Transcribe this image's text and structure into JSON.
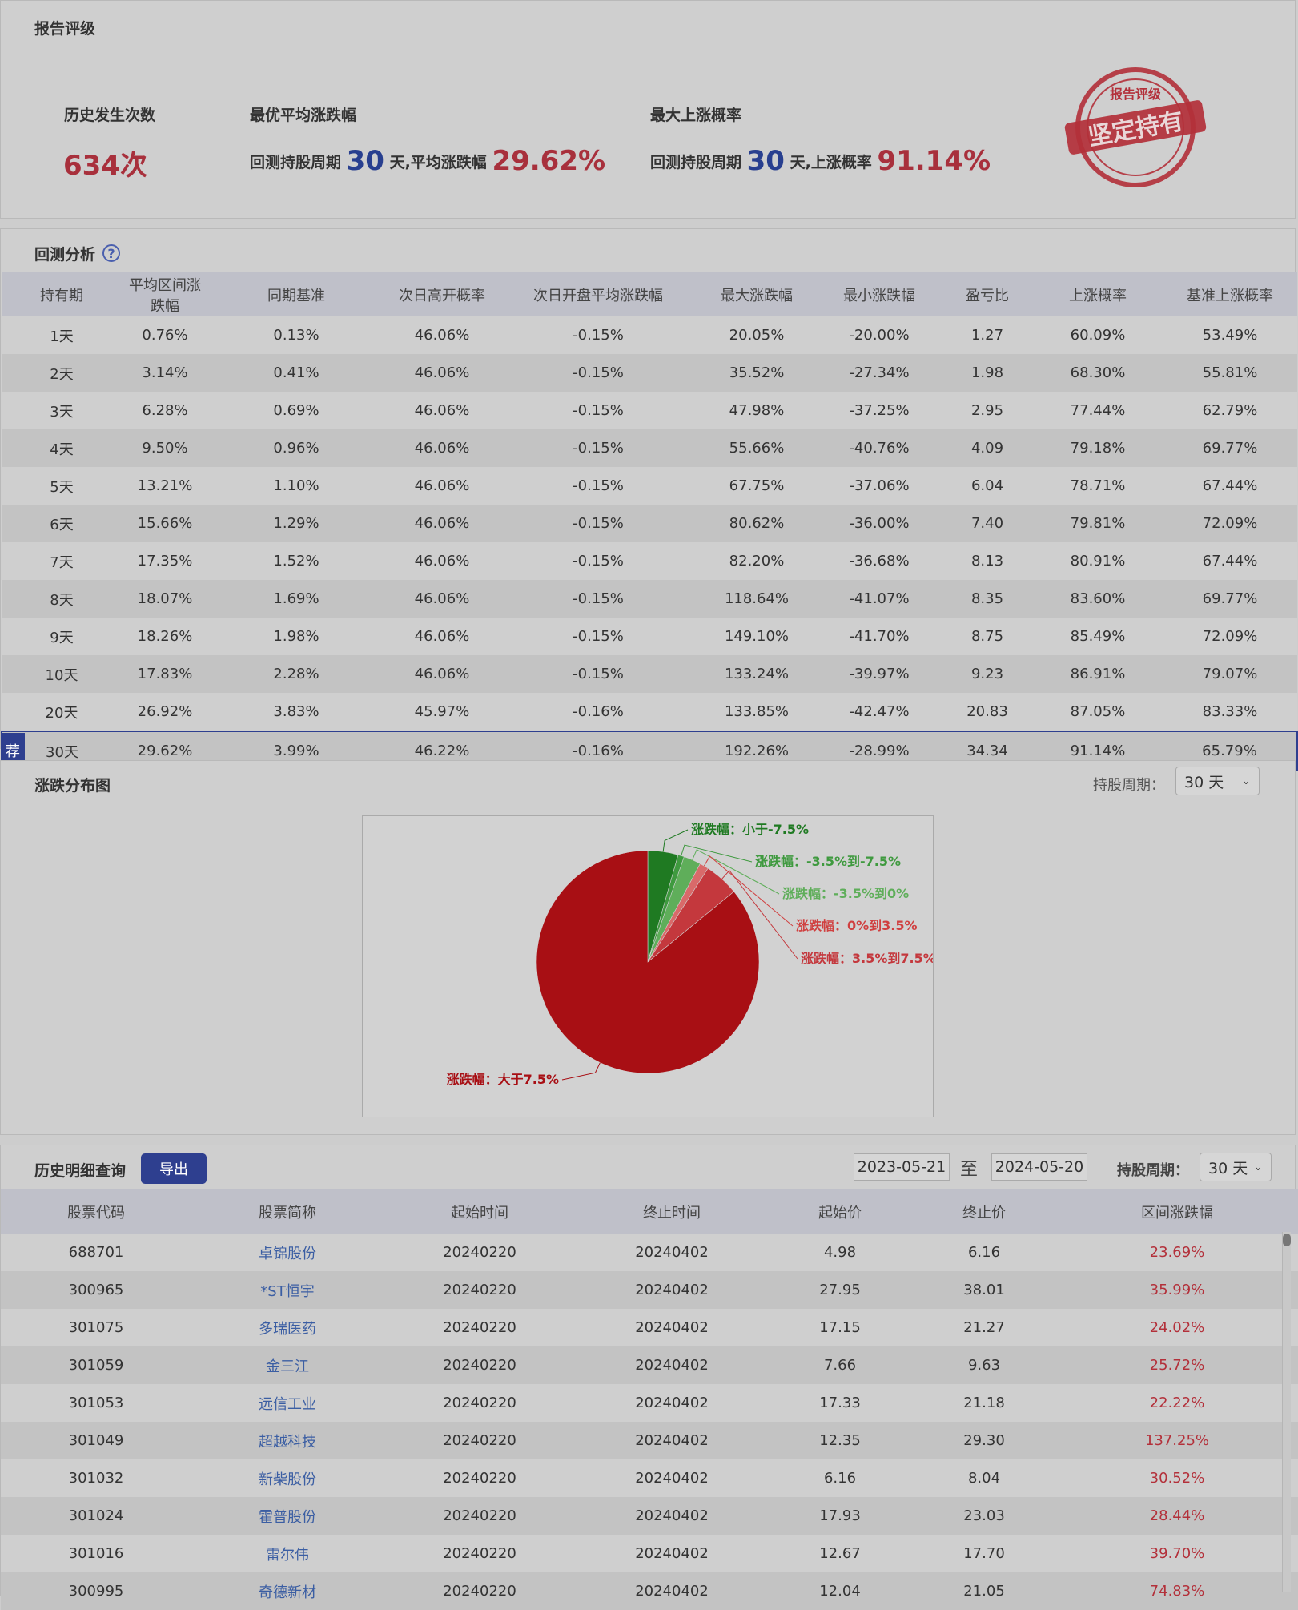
{
  "rating": {
    "title": "报告评级",
    "occurrences_label": "历史发生次数",
    "occurrences_value": "634次",
    "best_avg_label": "最优平均涨跌幅",
    "best_avg_prefix": "回测持股周期",
    "best_avg_days": "30",
    "best_avg_mid": "天,平均涨跌幅",
    "best_avg_value": "29.62%",
    "max_up_label": "最大上涨概率",
    "max_up_prefix": "回测持股周期",
    "max_up_days": "30",
    "max_up_mid": "天,上涨概率",
    "max_up_value": "91.14%",
    "stamp_top": "报告评级",
    "stamp_text": "坚定持有",
    "stamp_color": "#b3303a"
  },
  "backtest": {
    "title": "回测分析",
    "help_icon": "?",
    "headers": [
      "持有期",
      "平均区间涨跌幅",
      "同期基准",
      "次日高开概率",
      "次日开盘平均涨跌幅",
      "最大涨跌幅",
      "最小涨跌幅",
      "盈亏比",
      "上涨概率",
      "基准上涨概率"
    ],
    "rows": [
      [
        "1天",
        "0.76%",
        "0.13%",
        "46.06%",
        "-0.15%",
        "20.05%",
        "-20.00%",
        "1.27",
        "60.09%",
        "53.49%"
      ],
      [
        "2天",
        "3.14%",
        "0.41%",
        "46.06%",
        "-0.15%",
        "35.52%",
        "-27.34%",
        "1.98",
        "68.30%",
        "55.81%"
      ],
      [
        "3天",
        "6.28%",
        "0.69%",
        "46.06%",
        "-0.15%",
        "47.98%",
        "-37.25%",
        "2.95",
        "77.44%",
        "62.79%"
      ],
      [
        "4天",
        "9.50%",
        "0.96%",
        "46.06%",
        "-0.15%",
        "55.66%",
        "-40.76%",
        "4.09",
        "79.18%",
        "69.77%"
      ],
      [
        "5天",
        "13.21%",
        "1.10%",
        "46.06%",
        "-0.15%",
        "67.75%",
        "-37.06%",
        "6.04",
        "78.71%",
        "67.44%"
      ],
      [
        "6天",
        "15.66%",
        "1.29%",
        "46.06%",
        "-0.15%",
        "80.62%",
        "-36.00%",
        "7.40",
        "79.81%",
        "72.09%"
      ],
      [
        "7天",
        "17.35%",
        "1.52%",
        "46.06%",
        "-0.15%",
        "82.20%",
        "-36.68%",
        "8.13",
        "80.91%",
        "67.44%"
      ],
      [
        "8天",
        "18.07%",
        "1.69%",
        "46.06%",
        "-0.15%",
        "118.64%",
        "-41.07%",
        "8.35",
        "83.60%",
        "69.77%"
      ],
      [
        "9天",
        "18.26%",
        "1.98%",
        "46.06%",
        "-0.15%",
        "149.10%",
        "-41.70%",
        "8.75",
        "85.49%",
        "72.09%"
      ],
      [
        "10天",
        "17.83%",
        "2.28%",
        "46.06%",
        "-0.15%",
        "133.24%",
        "-39.97%",
        "9.23",
        "86.91%",
        "79.07%"
      ],
      [
        "20天",
        "26.92%",
        "3.83%",
        "45.97%",
        "-0.16%",
        "133.85%",
        "-42.47%",
        "20.83",
        "87.05%",
        "83.33%"
      ],
      [
        "30天",
        "29.62%",
        "3.99%",
        "46.22%",
        "-0.16%",
        "192.26%",
        "-28.99%",
        "34.34",
        "91.14%",
        "65.79%"
      ]
    ],
    "recommend_badge": "荐",
    "recommend_row_index": 11
  },
  "distribution": {
    "title": "涨跌分布图",
    "period_label": "持股周期：",
    "period_value": "30 天"
  },
  "chart_data": {
    "type": "pie",
    "slices": [
      {
        "label": "涨跌幅：小于-7.5%",
        "value": 4.4,
        "color": "#1f7a22"
      },
      {
        "label": "涨跌幅：-3.5%到-7.5%",
        "value": 0.9,
        "color": "#3f9a3f"
      },
      {
        "label": "涨跌幅：-3.5%到0%",
        "value": 2.5,
        "color": "#5fae5a"
      },
      {
        "label": "涨跌幅：0%到3.5%",
        "value": 1.3,
        "color": "#d96a6a"
      },
      {
        "label": "涨跌幅：3.5%到7.5%",
        "value": 5.0,
        "color": "#c4383d"
      },
      {
        "label": "涨跌幅：大于7.5%",
        "value": 85.9,
        "color": "#a80f14"
      }
    ],
    "label_colors": [
      "#1f7a22",
      "#3f9a3f",
      "#5fae5a",
      "#d04040",
      "#c4383d",
      "#a80f14"
    ]
  },
  "history": {
    "title": "历史明细查询",
    "export_label": "导出",
    "date_from": "2023-05-21",
    "date_sep": "至",
    "date_to": "2024-05-20",
    "period_label": "持股周期：",
    "period_value": "30 天",
    "headers": [
      "股票代码",
      "股票简称",
      "起始时间",
      "终止时间",
      "起始价",
      "终止价",
      "区间涨跌幅"
    ],
    "rows": [
      [
        "688701",
        "卓锦股份",
        "20240220",
        "20240402",
        "4.98",
        "6.16",
        "23.69%"
      ],
      [
        "300965",
        "*ST恒宇",
        "20240220",
        "20240402",
        "27.95",
        "38.01",
        "35.99%"
      ],
      [
        "301075",
        "多瑞医药",
        "20240220",
        "20240402",
        "17.15",
        "21.27",
        "24.02%"
      ],
      [
        "301059",
        "金三江",
        "20240220",
        "20240402",
        "7.66",
        "9.63",
        "25.72%"
      ],
      [
        "301053",
        "远信工业",
        "20240220",
        "20240402",
        "17.33",
        "21.18",
        "22.22%"
      ],
      [
        "301049",
        "超越科技",
        "20240220",
        "20240402",
        "12.35",
        "29.30",
        "137.25%"
      ],
      [
        "301032",
        "新柴股份",
        "20240220",
        "20240402",
        "6.16",
        "8.04",
        "30.52%"
      ],
      [
        "301024",
        "霍普股份",
        "20240220",
        "20240402",
        "17.93",
        "23.03",
        "28.44%"
      ],
      [
        "301016",
        "雷尔伟",
        "20240220",
        "20240402",
        "12.67",
        "17.70",
        "39.70%"
      ],
      [
        "300995",
        "奇德新材",
        "20240220",
        "20240402",
        "12.04",
        "21.05",
        "74.83%"
      ]
    ]
  }
}
